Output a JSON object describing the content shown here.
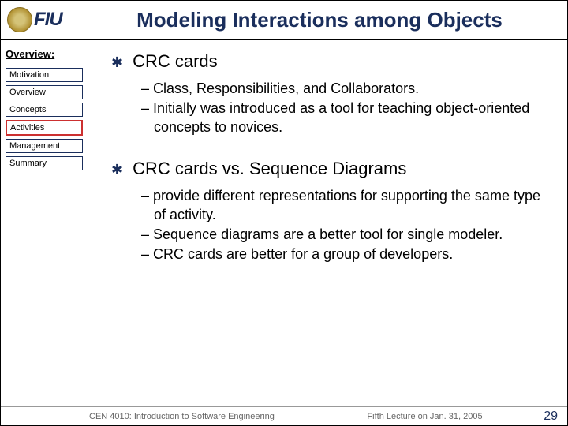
{
  "title": "Modeling Interactions among Objects",
  "logo": {
    "text": "FIU"
  },
  "sidebar": {
    "heading": "Overview:",
    "items": [
      {
        "label": "Motivation",
        "active": false
      },
      {
        "label": "Overview",
        "active": false
      },
      {
        "label": "Concepts",
        "active": false
      },
      {
        "label": "Activities",
        "active": true
      },
      {
        "label": "Management",
        "active": false
      },
      {
        "label": "Summary",
        "active": false
      }
    ]
  },
  "content": {
    "sections": [
      {
        "heading": "CRC cards",
        "subs": [
          "Class, Responsibilities, and Collaborators.",
          "Initially was introduced as a tool for teaching object-oriented concepts to novices."
        ]
      },
      {
        "heading": "CRC cards vs. Sequence Diagrams",
        "subs": [
          "provide different representations for supporting the same type of activity.",
          "Sequence diagrams are a better tool for single modeler.",
          "CRC cards are better for a group of developers."
        ]
      }
    ]
  },
  "footer": {
    "course": "CEN 4010: Introduction to Software Engineering",
    "lecture": "Fifth Lecture on Jan. 31, 2005",
    "page": "29"
  },
  "colors": {
    "title_color": "#1a2e5c",
    "nav_border": "#1a2e5c",
    "nav_active_border": "#cc3030",
    "footer_text": "#666666"
  }
}
